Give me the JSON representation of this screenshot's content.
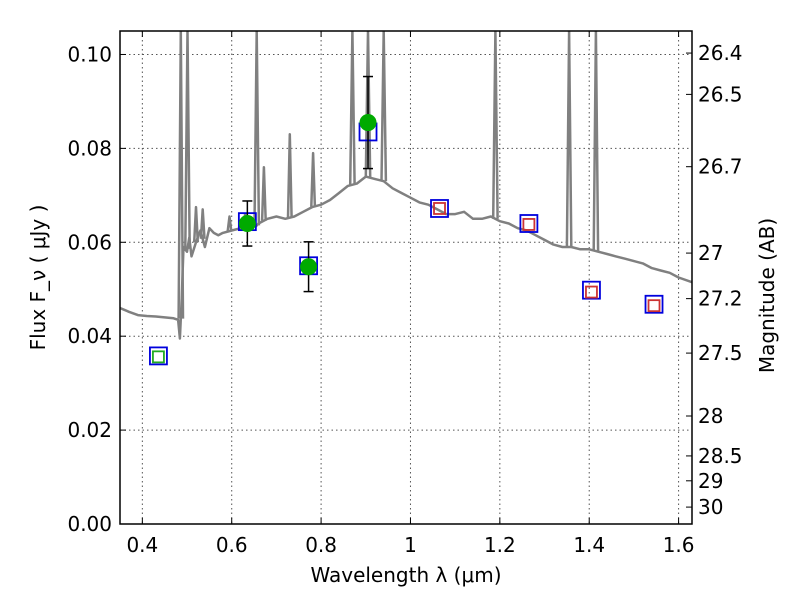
{
  "chart_data": {
    "type": "scatter",
    "title": "",
    "xlabel": "Wavelength  λ (μm)",
    "ylabel": "Flux  F_ν  ( μJy )",
    "y2label": "Magnitude (AB)",
    "xlim": [
      0.35,
      1.63
    ],
    "ylim": [
      0.0,
      0.105
    ],
    "grid": true,
    "legend": "none",
    "x_ticks": [
      0.4,
      0.6,
      0.8,
      1.0,
      1.2,
      1.4,
      1.6
    ],
    "x_tick_labels": [
      "0.4",
      "0.6",
      "0.8",
      "1",
      "1.2",
      "1.4",
      "1.6"
    ],
    "y_ticks": [
      0.0,
      0.02,
      0.04,
      0.06,
      0.08,
      0.1
    ],
    "y_tick_labels": [
      "0.00",
      "0.02",
      "0.04",
      "0.06",
      "0.08",
      "0.10"
    ],
    "y2_ticks": [
      {
        "label": "26.4",
        "flux": 0.1003
      },
      {
        "label": "26.5",
        "flux": 0.0915
      },
      {
        "label": "26.7",
        "flux": 0.0761
      },
      {
        "label": "27",
        "flux": 0.0577
      },
      {
        "label": "27.2",
        "flux": 0.048
      },
      {
        "label": "27.5",
        "flux": 0.0364
      },
      {
        "label": "28",
        "flux": 0.023
      },
      {
        "label": "28.5",
        "flux": 0.0145
      },
      {
        "label": "29",
        "flux": 0.0092
      },
      {
        "label": "30",
        "flux": 0.0036
      }
    ],
    "colors": {
      "spectrum": "#808080",
      "observed": "#00aa00",
      "model_blue": "#0000dd",
      "model_red": "#cc3333",
      "model_green": "#22aa22",
      "errorbar": "#000000"
    },
    "series": [
      {
        "kind": "spectrum",
        "x": [
          0.35,
          0.37,
          0.39,
          0.41,
          0.43,
          0.45,
          0.47,
          0.48,
          0.484,
          0.488,
          0.492,
          0.5,
          0.505,
          0.51,
          0.52,
          0.53,
          0.54,
          0.55,
          0.56,
          0.57,
          0.58,
          0.6,
          0.62,
          0.64,
          0.655,
          0.66,
          0.68,
          0.7,
          0.72,
          0.74,
          0.76,
          0.78,
          0.8,
          0.82,
          0.84,
          0.86,
          0.88,
          0.9,
          0.92,
          0.94,
          0.96,
          0.98,
          1.0,
          1.02,
          1.04,
          1.06,
          1.08,
          1.1,
          1.12,
          1.14,
          1.16,
          1.18,
          1.2,
          1.22,
          1.24,
          1.26,
          1.28,
          1.3,
          1.32,
          1.34,
          1.36,
          1.38,
          1.4,
          1.42,
          1.44,
          1.46,
          1.48,
          1.5,
          1.52,
          1.54,
          1.56,
          1.58,
          1.6,
          1.63
        ],
        "y": [
          0.046,
          0.0452,
          0.0445,
          0.0443,
          0.0442,
          0.044,
          0.0438,
          0.0435,
          0.0395,
          0.048,
          0.059,
          0.058,
          0.061,
          0.057,
          0.06,
          0.0625,
          0.059,
          0.063,
          0.062,
          0.0615,
          0.062,
          0.0625,
          0.063,
          0.064,
          0.0635,
          0.064,
          0.065,
          0.0655,
          0.065,
          0.0655,
          0.0665,
          0.0675,
          0.068,
          0.069,
          0.0705,
          0.072,
          0.0725,
          0.074,
          0.0735,
          0.073,
          0.0715,
          0.0705,
          0.0695,
          0.0685,
          0.068,
          0.067,
          0.066,
          0.066,
          0.0665,
          0.065,
          0.065,
          0.0655,
          0.0645,
          0.064,
          0.063,
          0.0625,
          0.0615,
          0.0605,
          0.0595,
          0.059,
          0.059,
          0.0585,
          0.0585,
          0.058,
          0.0575,
          0.057,
          0.0565,
          0.056,
          0.0555,
          0.0545,
          0.054,
          0.0535,
          0.0525,
          0.0515
        ]
      },
      {
        "kind": "emission_lines",
        "x": [
          0.486,
          0.501,
          0.656,
          0.87,
          0.905,
          0.94,
          1.19,
          1.355,
          1.415
        ],
        "peak": [
          0.105,
          0.105,
          0.105,
          0.105,
          0.105,
          0.105,
          0.105,
          0.105,
          0.105
        ]
      },
      {
        "kind": "small_lines",
        "x": [
          0.52,
          0.535,
          0.595,
          0.63,
          0.672,
          0.73,
          0.782
        ],
        "peak": [
          0.0675,
          0.067,
          0.0655,
          0.066,
          0.076,
          0.083,
          0.079
        ]
      },
      {
        "kind": "model_blue",
        "x": [
          0.436,
          0.635,
          0.772,
          0.905,
          1.065,
          1.265,
          1.405,
          1.545
        ],
        "y": [
          0.0358,
          0.0644,
          0.055,
          0.0835,
          0.0672,
          0.064,
          0.0498,
          0.0468
        ]
      },
      {
        "kind": "model_red",
        "x": [
          1.065,
          1.265,
          1.405,
          1.545
        ],
        "y": [
          0.0672,
          0.0638,
          0.0494,
          0.0465
        ]
      },
      {
        "kind": "model_green",
        "x": [
          0.436
        ],
        "y": [
          0.0356
        ]
      },
      {
        "kind": "observed",
        "x": [
          0.635,
          0.772,
          0.905
        ],
        "y": [
          0.064,
          0.0548,
          0.0855
        ],
        "err": [
          0.0048,
          0.0053,
          0.0098
        ]
      }
    ]
  }
}
